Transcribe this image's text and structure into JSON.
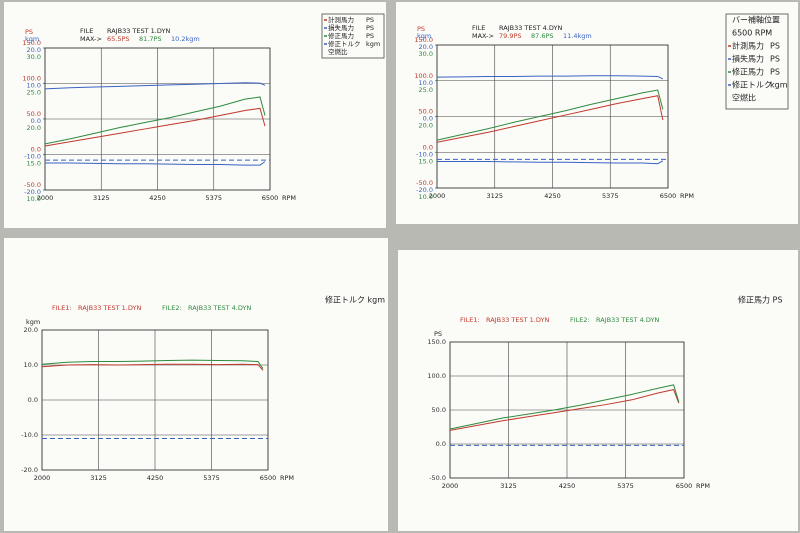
{
  "chart_data": [
    {
      "type": "line",
      "header": {
        "units": [
          {
            "text": "PS",
            "color": "#c0392b"
          },
          {
            "text": "kgm",
            "color": "#3b63c4"
          }
        ],
        "file_label": "FILE",
        "file": "RAJB33 TEST 1.DYN",
        "max_label": "MAX->",
        "max_values": [
          {
            "text": "65.5PS",
            "color": "#c0392b"
          },
          {
            "text": "81.7PS",
            "color": "#2e8b3e"
          },
          {
            "text": "10.2kgm",
            "color": "#3b63c4"
          }
        ]
      },
      "x": [
        2000,
        2500,
        3000,
        3500,
        4000,
        4500,
        5000,
        5500,
        6000,
        6300,
        6400
      ],
      "xlim": [
        2000,
        6500
      ],
      "xticks": [
        2000,
        3125,
        4250,
        5375,
        6500
      ],
      "xlabel": "RPM",
      "ylim": [
        -50,
        150
      ],
      "ytick_color": "#c0392b",
      "yticks": [
        {
          "value": 150,
          "label": "150.0"
        },
        {
          "value": 100,
          "label": "100.0"
        },
        {
          "value": 50,
          "label": "50.0"
        },
        {
          "value": 0,
          "label": "0.0"
        },
        {
          "value": -50,
          "label": "-50.0"
        }
      ],
      "y2lim": [
        -20,
        20
      ],
      "y2tick_color": "#3b63c4",
      "y2ticks": [
        {
          "value": 20,
          "label": "20.0"
        },
        {
          "value": 10,
          "label": "10.0"
        },
        {
          "value": 0,
          "label": "0.0"
        },
        {
          "value": -10,
          "label": "-10.0"
        },
        {
          "value": -20,
          "label": "-20.0"
        }
      ],
      "y3lim": [
        10,
        30
      ],
      "y3tick_color": "#2e8b3e",
      "y3ticks": [
        {
          "value": 30,
          "label": "30.0"
        },
        {
          "value": 25,
          "label": "25.0"
        },
        {
          "value": 20,
          "label": "20.0"
        },
        {
          "value": 15,
          "label": "15.0"
        },
        {
          "value": 10,
          "label": "10.0"
        }
      ],
      "hline": -8,
      "hline_color": "#3b63c4",
      "series": [
        {
          "name": "計測馬力",
          "unit": "PS",
          "color": "#c0392b",
          "values": [
            12,
            18,
            24,
            30,
            36,
            42,
            48,
            55,
            62,
            65,
            40
          ]
        },
        {
          "name": "損失馬力",
          "unit": "PS",
          "color": "#3b63c4",
          "values": [
            -12,
            -12,
            -12.5,
            -13,
            -13,
            -13.5,
            -14,
            -14,
            -15,
            -15,
            -10
          ]
        },
        {
          "name": "修正馬力",
          "unit": "PS",
          "color": "#2e8b3e",
          "values": [
            15,
            22,
            30,
            38,
            45,
            52,
            60,
            68,
            78,
            81,
            55
          ]
        },
        {
          "name": "修正トルク",
          "unit": "kgm",
          "color": "#3b63c4",
          "axis": "y2",
          "values": [
            8.5,
            8.8,
            9.0,
            9.2,
            9.4,
            9.6,
            9.8,
            10.0,
            10.2,
            10.1,
            9.5
          ]
        }
      ],
      "legend_extra": "空燃比"
    },
    {
      "type": "line",
      "header": {
        "units": [
          {
            "text": "PS",
            "color": "#c0392b"
          },
          {
            "text": "kgm",
            "color": "#3b63c4"
          }
        ],
        "file_label": "FILE",
        "file": "RAJB33 TEST 4.DYN",
        "max_label": "MAX->",
        "max_values": [
          {
            "text": "79.9PS",
            "color": "#c0392b"
          },
          {
            "text": "87.6PS",
            "color": "#2e8b3e"
          },
          {
            "text": "11.4kgm",
            "color": "#3b63c4"
          }
        ]
      },
      "legend_title": "バー補軸位置",
      "legend_subtitle": "6500 RPM",
      "x": [
        2000,
        2500,
        3000,
        3500,
        4000,
        4500,
        5000,
        5500,
        6000,
        6300,
        6400
      ],
      "xlim": [
        2000,
        6500
      ],
      "xticks": [
        2000,
        3125,
        4250,
        5375,
        6500
      ],
      "xlabel": "RPM",
      "ylim": [
        -50,
        150
      ],
      "ytick_color": "#c0392b",
      "yticks": [
        {
          "value": 150,
          "label": "150.0"
        },
        {
          "value": 100,
          "label": "100.0"
        },
        {
          "value": 50,
          "label": "50.0"
        },
        {
          "value": 0,
          "label": "0.0"
        },
        {
          "value": -50,
          "label": "-50.0"
        }
      ],
      "y2lim": [
        -20,
        20
      ],
      "y2tick_color": "#3b63c4",
      "y2ticks": [
        {
          "value": 20,
          "label": "20.0"
        },
        {
          "value": 10,
          "label": "10.0"
        },
        {
          "value": 0,
          "label": "0.0"
        },
        {
          "value": -10,
          "label": "-10.0"
        },
        {
          "value": -20,
          "label": "-20.0"
        }
      ],
      "y3lim": [
        10,
        30
      ],
      "y3tick_color": "#2e8b3e",
      "y3ticks": [
        {
          "value": 30,
          "label": "30.0"
        },
        {
          "value": 25,
          "label": "25.0"
        },
        {
          "value": 20,
          "label": "20.0"
        },
        {
          "value": 15,
          "label": "15.0"
        },
        {
          "value": 10,
          "label": "10.0"
        }
      ],
      "hline": -10,
      "hline_color": "#3b63c4",
      "series": [
        {
          "name": "計測馬力",
          "unit": "PS",
          "color": "#c0392b",
          "values": [
            14,
            21,
            28,
            36,
            44,
            52,
            60,
            68,
            75,
            79,
            45
          ]
        },
        {
          "name": "損失馬力",
          "unit": "PS",
          "color": "#3b63c4",
          "values": [
            -13,
            -13,
            -13,
            -13.5,
            -14,
            -14,
            -14.5,
            -15,
            -15,
            -16,
            -12
          ]
        },
        {
          "name": "修正馬力",
          "unit": "PS",
          "color": "#2e8b3e",
          "values": [
            17,
            25,
            33,
            42,
            50,
            58,
            67,
            75,
            83,
            87,
            60
          ]
        },
        {
          "name": "修正トルク",
          "unit": "kgm",
          "color": "#3b63c4",
          "axis": "y2",
          "values": [
            11.0,
            11.1,
            11.2,
            11.2,
            11.3,
            11.3,
            11.4,
            11.4,
            11.3,
            11.2,
            10.5
          ]
        }
      ],
      "legend_extra": "空燃比"
    },
    {
      "type": "line",
      "title": "修正トルク kgm",
      "ylabel": "kgm",
      "file_labels": [
        "FILE1:",
        "FILE2:"
      ],
      "x": [
        2000,
        2500,
        3000,
        3500,
        4000,
        4500,
        5000,
        5500,
        6000,
        6300,
        6400
      ],
      "xlim": [
        2000,
        6500
      ],
      "xticks": [
        2000,
        3125,
        4250,
        5375,
        6500
      ],
      "xlabel": "RPM",
      "ylim": [
        -20,
        20
      ],
      "ytick_color": "#333333",
      "yticks": [
        {
          "value": 20,
          "label": "20.0"
        },
        {
          "value": 10,
          "label": "10.0"
        },
        {
          "value": 0,
          "label": "0.0"
        },
        {
          "value": -10,
          "label": "-10.0"
        },
        {
          "value": -20,
          "label": "-20.0"
        }
      ],
      "hline": -11,
      "hline_color": "#3b63c4",
      "series": [
        {
          "name": "RAJB33 TEST 1.DYN",
          "color": "#c0392b",
          "values": [
            9.5,
            10.0,
            10.1,
            10.0,
            10.1,
            10.2,
            10.2,
            10.1,
            10.2,
            10.1,
            8.5
          ]
        },
        {
          "name": "RAJB33 TEST 4.DYN",
          "color": "#2e8b3e",
          "values": [
            10.2,
            10.8,
            11.0,
            11.0,
            11.1,
            11.3,
            11.4,
            11.3,
            11.2,
            11.0,
            9.0
          ]
        }
      ]
    },
    {
      "type": "line",
      "title": "修正馬力 PS",
      "ylabel": "PS",
      "file_labels": [
        "FILE1:",
        "FILE2:"
      ],
      "x": [
        2000,
        2500,
        3000,
        3500,
        4000,
        4500,
        5000,
        5500,
        6000,
        6300,
        6400
      ],
      "xlim": [
        2000,
        6500
      ],
      "xticks": [
        2000,
        3125,
        4250,
        5375,
        6500
      ],
      "xlabel": "RPM",
      "ylim": [
        -50,
        150
      ],
      "ytick_color": "#333333",
      "yticks": [
        {
          "value": 150,
          "label": "150.0"
        },
        {
          "value": 100,
          "label": "100.0"
        },
        {
          "value": 50,
          "label": "50.0"
        },
        {
          "value": 0,
          "label": "0.0"
        },
        {
          "value": -50,
          "label": "-50.0"
        }
      ],
      "hline": -2,
      "hline_color": "#3b63c4",
      "series": [
        {
          "name": "RAJB33 TEST 1.DYN",
          "color": "#c0392b",
          "values": [
            20,
            27,
            34,
            40,
            46,
            52,
            58,
            65,
            75,
            80,
            60
          ]
        },
        {
          "name": "RAJB33 TEST 4.DYN",
          "color": "#2e8b3e",
          "values": [
            22,
            30,
            38,
            44,
            50,
            57,
            65,
            73,
            82,
            87,
            62
          ]
        }
      ]
    }
  ]
}
